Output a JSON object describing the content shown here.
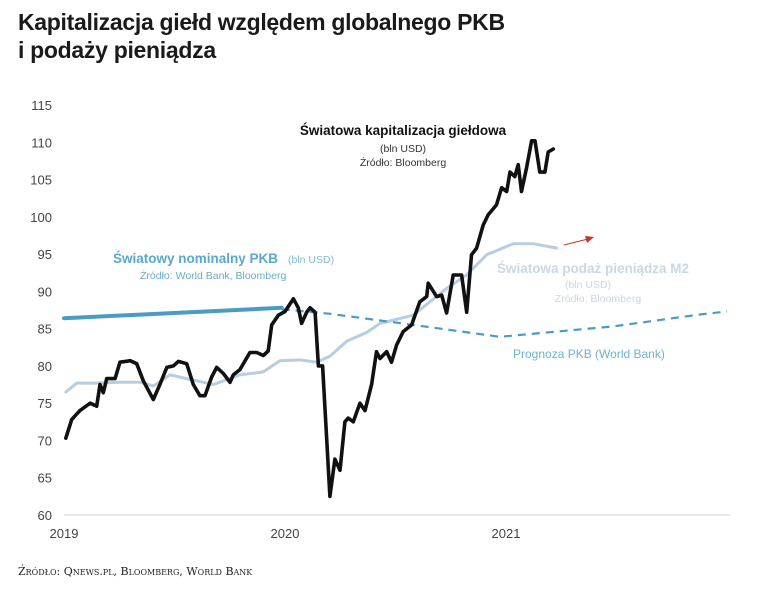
{
  "title_line1": "Kapitalizacja giełd względem globalnego PKB",
  "title_line2": "i podaży pieniądza",
  "footer": "Źródło: Qnews.pl, Bloomberg, World Bank",
  "chart_data": {
    "type": "line",
    "title": "Kapitalizacja giełd względem globalnego PKB i podaży pieniądza",
    "xlabel": "",
    "ylabel": "",
    "xlim": [
      2019,
      2022
    ],
    "ylim": [
      60,
      115
    ],
    "x_ticks": [
      "2019",
      "2020",
      "2021"
    ],
    "y_ticks": [
      60,
      65,
      70,
      75,
      80,
      85,
      90,
      95,
      100,
      105,
      110,
      115
    ],
    "grid": false,
    "colors": {
      "market": "#111111",
      "m2": "#b7cde0",
      "gdp": "#4a9cc4",
      "forecast": "#4a9cc4",
      "arrow": "#c0392b"
    },
    "series": [
      {
        "name": "Światowa kapitalizacja giełdowa",
        "style": "solid",
        "points": [
          [
            2019.008,
            70.3
          ],
          [
            2019.035,
            72.8
          ],
          [
            2019.072,
            74
          ],
          [
            2019.118,
            75
          ],
          [
            2019.148,
            74.6
          ],
          [
            2019.163,
            77.5
          ],
          [
            2019.178,
            76.4
          ],
          [
            2019.193,
            78.3
          ],
          [
            2019.231,
            78.3
          ],
          [
            2019.253,
            80.5
          ],
          [
            2019.299,
            80.7
          ],
          [
            2019.329,
            80.3
          ],
          [
            2019.359,
            78
          ],
          [
            2019.404,
            75.5
          ],
          [
            2019.434,
            77.5
          ],
          [
            2019.465,
            79.8
          ],
          [
            2019.495,
            80
          ],
          [
            2019.517,
            80.6
          ],
          [
            2019.555,
            80.3
          ],
          [
            2019.585,
            77.5
          ],
          [
            2019.615,
            76
          ],
          [
            2019.638,
            76
          ],
          [
            2019.668,
            78.5
          ],
          [
            2019.691,
            79.8
          ],
          [
            2019.721,
            79
          ],
          [
            2019.751,
            77.8
          ],
          [
            2019.766,
            78.8
          ],
          [
            2019.796,
            79.5
          ],
          [
            2019.841,
            81.8
          ],
          [
            2019.872,
            81.8
          ],
          [
            2019.902,
            81.4
          ],
          [
            2019.924,
            82
          ],
          [
            2019.94,
            85.5
          ],
          [
            2019.97,
            86.8
          ],
          [
            2020.0,
            87.3
          ],
          [
            2020.038,
            89
          ],
          [
            2020.06,
            87.8
          ],
          [
            2020.075,
            85.7
          ],
          [
            2020.098,
            87.2
          ],
          [
            2020.113,
            87.8
          ],
          [
            2020.136,
            87.2
          ],
          [
            2020.151,
            80
          ],
          [
            2020.17,
            80
          ],
          [
            2020.203,
            62.5
          ],
          [
            2020.226,
            67.5
          ],
          [
            2020.249,
            66
          ],
          [
            2020.271,
            72.5
          ],
          [
            2020.286,
            73
          ],
          [
            2020.309,
            72.5
          ],
          [
            2020.339,
            75
          ],
          [
            2020.362,
            74
          ],
          [
            2020.392,
            77.5
          ],
          [
            2020.414,
            81.9
          ],
          [
            2020.43,
            81
          ],
          [
            2020.46,
            81.9
          ],
          [
            2020.482,
            80.5
          ],
          [
            2020.505,
            82.8
          ],
          [
            2020.535,
            84.6
          ],
          [
            2020.573,
            85.5
          ],
          [
            2020.61,
            88.6
          ],
          [
            2020.641,
            89.3
          ],
          [
            2020.648,
            91.1
          ],
          [
            2020.686,
            89.3
          ],
          [
            2020.709,
            89.5
          ],
          [
            2020.731,
            87.1
          ],
          [
            2020.761,
            92.2
          ],
          [
            2020.799,
            92.2
          ],
          [
            2020.822,
            87.2
          ],
          [
            2020.844,
            94.9
          ],
          [
            2020.867,
            95.8
          ],
          [
            2020.897,
            98.9
          ],
          [
            2020.92,
            100.3
          ],
          [
            2020.957,
            101.6
          ],
          [
            2020.98,
            103.9
          ],
          [
            2021.003,
            103.4
          ],
          [
            2021.018,
            106
          ],
          [
            2021.04,
            105.4
          ],
          [
            2021.055,
            107
          ],
          [
            2021.07,
            103.4
          ],
          [
            2021.093,
            106.6
          ],
          [
            2021.116,
            110.2
          ],
          [
            2021.131,
            110.2
          ],
          [
            2021.153,
            106
          ],
          [
            2021.176,
            106
          ],
          [
            2021.191,
            108.7
          ],
          [
            2021.214,
            109.1
          ]
        ]
      },
      {
        "name": "Światowa podaż pieniądza M2",
        "style": "solid",
        "points": [
          [
            2019.008,
            76.5
          ],
          [
            2019.058,
            77.7
          ],
          [
            2019.133,
            77.7
          ],
          [
            2019.253,
            77.8
          ],
          [
            2019.344,
            77.8
          ],
          [
            2019.404,
            77.3
          ],
          [
            2019.48,
            78.8
          ],
          [
            2019.555,
            78.3
          ],
          [
            2019.676,
            77.5
          ],
          [
            2019.796,
            78.8
          ],
          [
            2019.902,
            79.2
          ],
          [
            2019.977,
            80.7
          ],
          [
            2020.068,
            80.8
          ],
          [
            2020.143,
            80.5
          ],
          [
            2020.203,
            81.3
          ],
          [
            2020.279,
            83.3
          ],
          [
            2020.37,
            84.5
          ],
          [
            2020.43,
            85.7
          ],
          [
            2020.58,
            86.8
          ],
          [
            2020.731,
            90.4
          ],
          [
            2020.822,
            92.2
          ],
          [
            2020.912,
            94.9
          ],
          [
            2021.033,
            96.4
          ],
          [
            2021.123,
            96.4
          ],
          [
            2021.229,
            95.8
          ]
        ]
      },
      {
        "name": "Światowy nominalny PKB",
        "style": "solid",
        "points": [
          [
            2019.0,
            86.4
          ],
          [
            2019.985,
            87.8
          ]
        ]
      },
      {
        "name": "Prognoza PKB (World Bank)",
        "style": "dashed",
        "points": [
          [
            2019.985,
            87.6
          ],
          [
            2020.2,
            87.0
          ],
          [
            2020.58,
            85.5
          ],
          [
            2020.972,
            83.9
          ],
          [
            2021.485,
            85.3
          ],
          [
            2021.877,
            86.9
          ],
          [
            2022.0,
            87.3
          ]
        ]
      }
    ],
    "annotations": {
      "market_title": "Światowa kapitalizacja giełdowa",
      "market_unit": "(bln USD)",
      "market_source": "Źródło: Bloomberg",
      "gdp_title": "Światowy nominalny PKB",
      "gdp_unit": "(bln USD)",
      "gdp_source": "Źródło: World Bank, Bloomberg",
      "m2_title": "Światowa podaż pieniądza M2",
      "m2_unit": "(bln USD)",
      "m2_source": "Źródło: Bloomberg",
      "forecast": "Prognoza PKB (World Bank)"
    }
  }
}
